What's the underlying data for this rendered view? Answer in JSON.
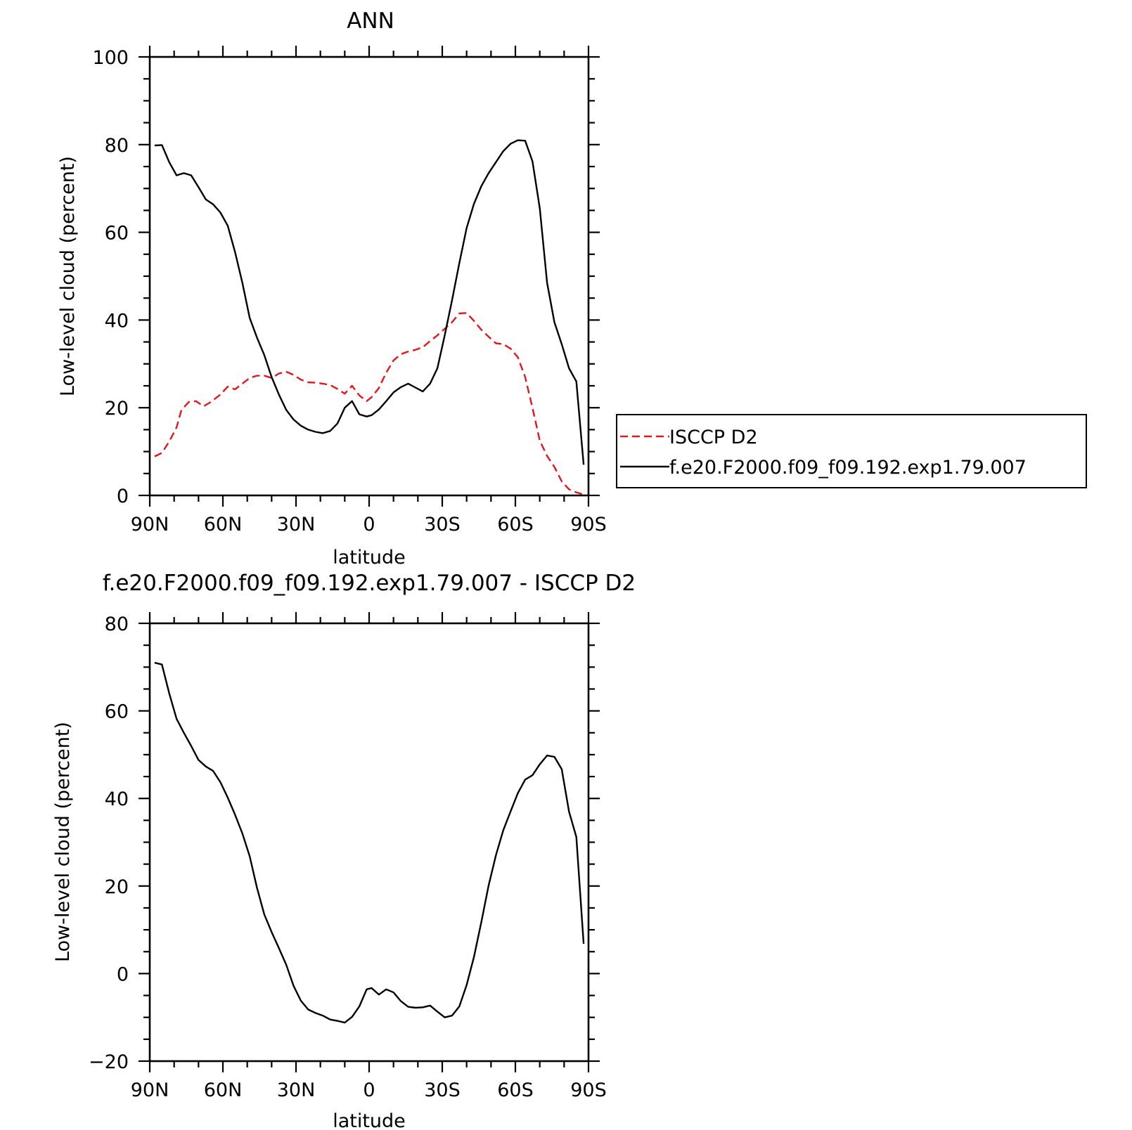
{
  "chart_data": [
    {
      "type": "line",
      "title": "ANN",
      "xlabel": "latitude",
      "ylabel": "Low-level cloud (percent)",
      "xlim": [
        90,
        -90
      ],
      "ylim": [
        0,
        100
      ],
      "yticks": [
        0,
        20,
        40,
        60,
        80,
        100
      ],
      "ytick_labels": [
        "0",
        "20",
        "40",
        "60",
        "80",
        "100"
      ],
      "xticks": [
        90,
        60,
        30,
        0,
        -30,
        -60,
        -90
      ],
      "xtick_labels": [
        "90N",
        "60N",
        "30N",
        "0",
        "30S",
        "60S",
        "90S"
      ],
      "legend_position": "right",
      "series": [
        {
          "name": "ISCCP D2",
          "color": "#e8141c",
          "dash": "dashed",
          "x": [
            88,
            85,
            82,
            79,
            77,
            74,
            71,
            68,
            65,
            61,
            58,
            55,
            52,
            49,
            46,
            43,
            40,
            37,
            34,
            31,
            28,
            25,
            22,
            19,
            16,
            13,
            10,
            7,
            4,
            1,
            -1,
            -4,
            -7,
            -10,
            -13,
            -16,
            -19,
            -22,
            -25,
            -28,
            -31,
            -34,
            -37,
            -40,
            -43,
            -46,
            -49,
            -52,
            -55,
            -58,
            -61,
            -64,
            -67,
            -70,
            -73,
            -76,
            -79,
            -82,
            -85,
            -88
          ],
          "y": [
            8.9,
            9.7,
            12.3,
            15.5,
            19.5,
            21.3,
            21.5,
            20.3,
            21.3,
            23.0,
            24.8,
            24.2,
            25.5,
            26.8,
            27.3,
            27.3,
            26.8,
            27.8,
            28.2,
            27.5,
            26.4,
            25.8,
            25.7,
            25.5,
            25.2,
            24.3,
            23.2,
            25.0,
            22.8,
            21.5,
            22.4,
            24.5,
            28.0,
            30.8,
            32.2,
            32.8,
            33.2,
            33.8,
            35.2,
            36.5,
            38.0,
            39.5,
            41.5,
            41.6,
            39.8,
            37.8,
            36.2,
            34.7,
            34.5,
            33.5,
            31.5,
            27.0,
            20.0,
            12.5,
            9.0,
            6.5,
            3.2,
            1.4,
            0.7,
            0.2
          ]
        },
        {
          "name": "f.e20.F2000.f09_f09.192.exp1.79.007",
          "color": "#000000",
          "dash": "solid",
          "x": [
            88,
            85,
            82,
            79,
            76,
            73,
            70,
            67,
            64,
            61,
            58,
            55,
            52,
            49,
            46,
            43,
            40,
            37,
            34,
            31,
            28,
            25,
            22,
            19,
            16,
            13,
            10,
            7,
            4,
            1,
            -1,
            -4,
            -7,
            -10,
            -13,
            -16,
            -19,
            -22,
            -25,
            -28,
            -31,
            -34,
            -37,
            -40,
            -43,
            -46,
            -49,
            -52,
            -55,
            -58,
            -61,
            -64,
            -67,
            -70,
            -73,
            -76,
            -79,
            -82,
            -85,
            -88
          ],
          "y": [
            79.8,
            79.9,
            76.0,
            73.0,
            73.5,
            73.0,
            70.3,
            67.5,
            66.4,
            64.5,
            61.5,
            55.5,
            48.5,
            40.5,
            36.0,
            32.0,
            27.0,
            23.0,
            19.5,
            17.3,
            15.9,
            15.0,
            14.5,
            14.2,
            14.7,
            16.4,
            20.0,
            21.5,
            18.5,
            18.0,
            18.3,
            19.6,
            21.5,
            23.5,
            24.7,
            25.5,
            24.6,
            23.7,
            25.5,
            29.0,
            36.5,
            44.5,
            53.0,
            61.0,
            66.5,
            70.5,
            73.5,
            76.0,
            78.5,
            80.2,
            81.0,
            80.9,
            76.2,
            65.5,
            48.5,
            39.5,
            34.5,
            29.0,
            26.0,
            7.0
          ]
        }
      ]
    },
    {
      "type": "line",
      "title": "f.e20.F2000.f09_f09.192.exp1.79.007 - ISCCP D2",
      "xlabel": "latitude",
      "ylabel": "Low-level cloud (percent)",
      "xlim": [
        90,
        -90
      ],
      "ylim": [
        -20,
        80
      ],
      "yticks": [
        -20,
        0,
        20,
        40,
        60,
        80
      ],
      "ytick_labels": [
        "−20",
        "0",
        "20",
        "40",
        "60",
        "80"
      ],
      "xticks": [
        90,
        60,
        30,
        0,
        -30,
        -60,
        -90
      ],
      "xtick_labels": [
        "90N",
        "60N",
        "30N",
        "0",
        "30S",
        "60S",
        "90S"
      ],
      "series": [
        {
          "color": "#000000",
          "dash": "solid",
          "x": [
            88,
            85,
            82,
            79,
            76,
            73,
            70,
            67,
            64,
            61,
            58,
            55,
            52,
            49,
            46,
            43,
            40,
            37,
            34,
            31,
            28,
            25,
            22,
            19,
            16,
            13,
            10,
            7,
            4,
            1,
            -1,
            -4,
            -7,
            -10,
            -13,
            -16,
            -19,
            -22,
            -25,
            -28,
            -31,
            -34,
            -37,
            -40,
            -43,
            -46,
            -49,
            -52,
            -55,
            -58,
            -61,
            -64,
            -67,
            -70,
            -73,
            -76,
            -79,
            -82,
            -85,
            -88
          ],
          "y": [
            71.0,
            70.6,
            64.0,
            58.2,
            55.0,
            52.0,
            48.8,
            47.3,
            46.3,
            43.7,
            40.2,
            36.3,
            32.0,
            26.8,
            19.6,
            13.5,
            9.5,
            5.8,
            2.0,
            -2.8,
            -6.2,
            -8.2,
            -9.0,
            -9.6,
            -10.5,
            -10.8,
            -11.2,
            -9.9,
            -7.5,
            -3.6,
            -3.3,
            -4.8,
            -3.6,
            -4.3,
            -6.3,
            -7.6,
            -7.8,
            -7.7,
            -7.3,
            -8.7,
            -10.0,
            -9.6,
            -7.5,
            -2.6,
            3.8,
            11.7,
            20.1,
            27.0,
            32.7,
            37.0,
            41.2,
            44.3,
            45.3,
            47.8,
            49.8,
            49.5,
            46.7,
            37.0,
            31.2,
            6.8
          ]
        }
      ]
    }
  ]
}
